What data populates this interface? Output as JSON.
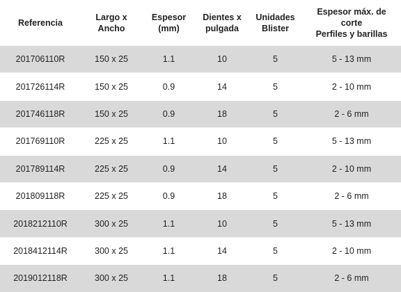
{
  "table": {
    "header": [
      [
        "Referencia"
      ],
      [
        "Largo x",
        "Ancho"
      ],
      [
        "Espesor",
        "(mm)"
      ],
      [
        "Dientes x",
        "pulgada"
      ],
      [
        "Unidades",
        "Blister"
      ],
      [
        "Espesor máx. de",
        "corte",
        "Perfiles y barillas"
      ]
    ],
    "rows": [
      [
        "201706110R",
        "150 x 25",
        "1.1",
        "10",
        "5",
        "5 - 13 mm"
      ],
      [
        "201726114R",
        "150 x 25",
        "0.9",
        "14",
        "5",
        "2 - 10 mm"
      ],
      [
        "201746118R",
        "150 x 25",
        "0.9",
        "18",
        "5",
        "2 - 6 mm"
      ],
      [
        "201769110R",
        "225 x 25",
        "1.1",
        "10",
        "5",
        "5 - 13 mm"
      ],
      [
        "201789114R",
        "225 x 25",
        "0.9",
        "14",
        "5",
        "2 - 10 mm"
      ],
      [
        "201809118R",
        "225 x 25",
        "0.9",
        "18",
        "5",
        "2 - 6 mm"
      ],
      [
        "2018212110R",
        "300 x 25",
        "1.1",
        "10",
        "5",
        "5 - 13 mm"
      ],
      [
        "2018412114R",
        "300 x 25",
        "1.1",
        "14",
        "5",
        "2 - 10 mm"
      ],
      [
        "2019012118R",
        "300 x 25",
        "1.1",
        "18",
        "5",
        "2 - 6 mm"
      ]
    ]
  }
}
